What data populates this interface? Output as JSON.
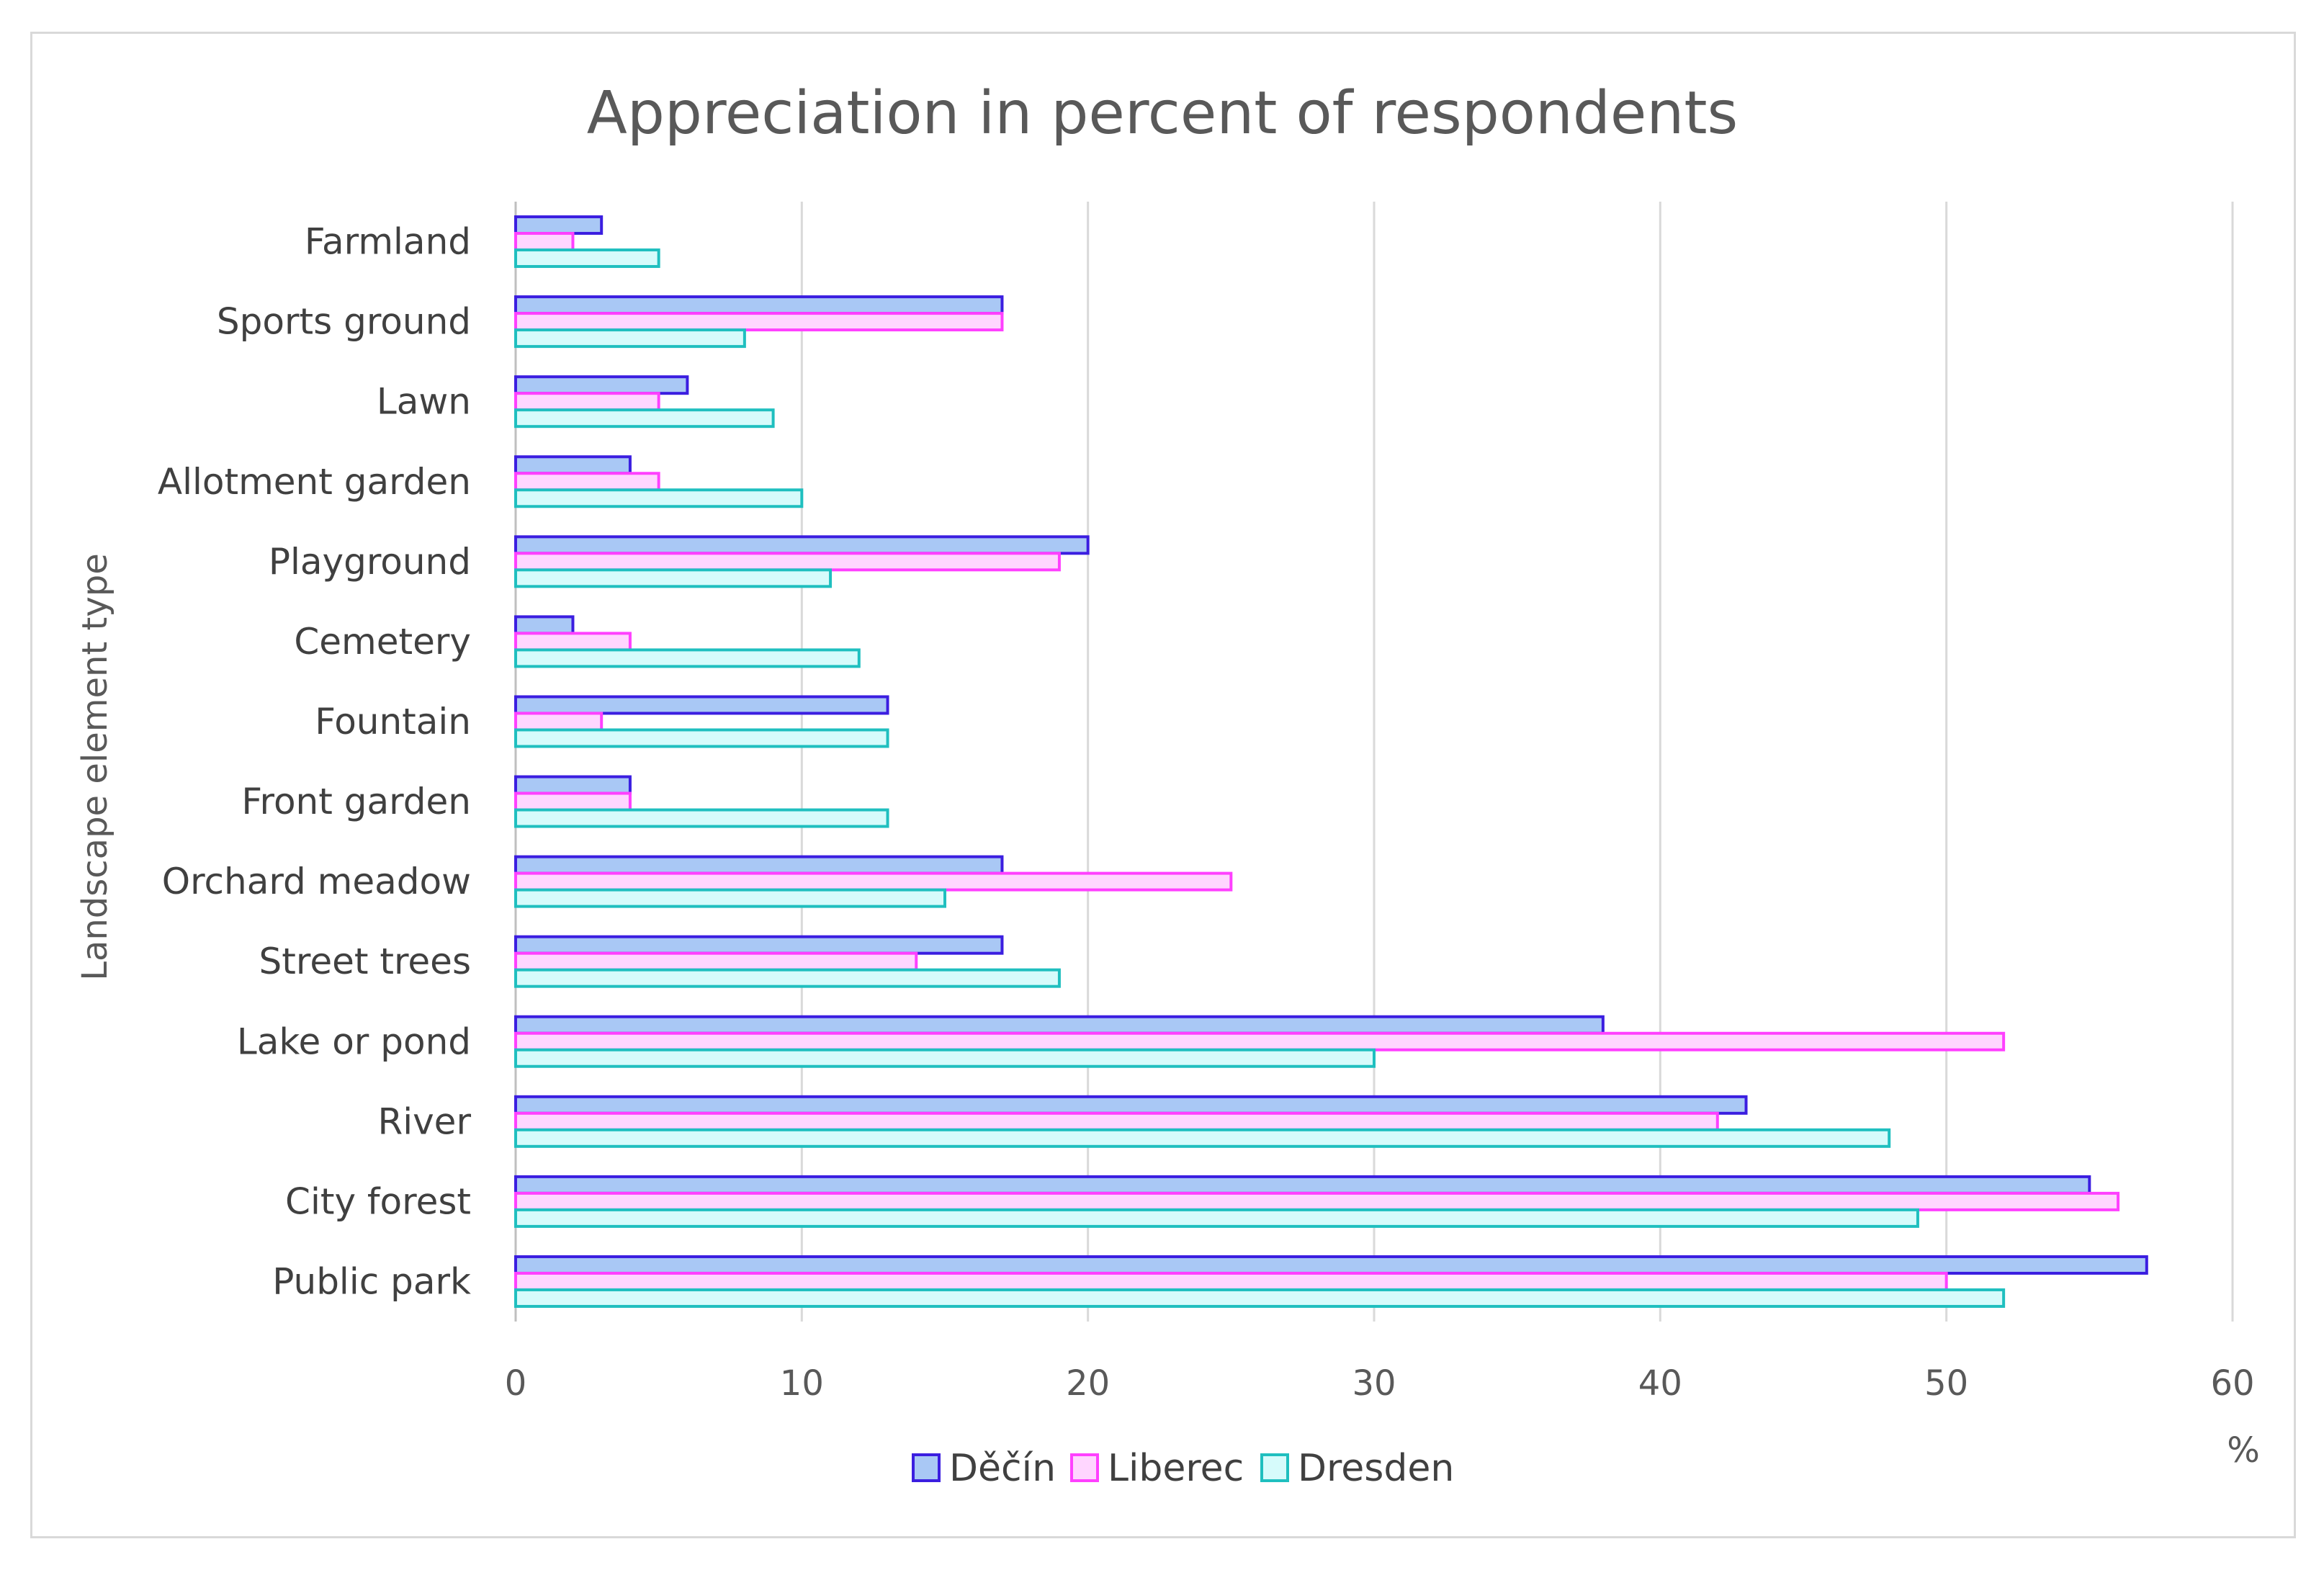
{
  "chart_data": {
    "type": "bar",
    "orientation": "horizontal",
    "title": "Appreciation in percent of respondents",
    "xlabel": "%",
    "ylabel": "Landscape element type",
    "xlim": [
      0,
      60
    ],
    "xticks": [
      "0",
      "10",
      "20",
      "30",
      "40",
      "50",
      "60"
    ],
    "grid": true,
    "legend_position": "bottom",
    "categories": [
      "Farmland",
      "Sports ground",
      "Lawn",
      "Allotment garden",
      "Playground",
      "Cemetery",
      "Fountain",
      "Front garden",
      "Orchard meadow",
      "Street trees",
      "Lake or pond",
      "River",
      "City forest",
      "Public park"
    ],
    "series": [
      {
        "name": "Děčín",
        "fill": "#a9c8f5",
        "stroke": "#3b1ee0",
        "values": [
          3,
          17,
          6,
          4,
          20,
          2,
          13,
          4,
          17,
          17,
          38,
          43,
          55,
          57
        ]
      },
      {
        "name": "Liberec",
        "fill": "#ffd6ff",
        "stroke": "#ff40ff",
        "values": [
          2,
          17,
          5,
          5,
          19,
          4,
          3,
          4,
          25,
          14,
          52,
          42,
          56,
          50
        ]
      },
      {
        "name": "Dresden",
        "fill": "#d6fbfb",
        "stroke": "#1fbfbf",
        "values": [
          5,
          8,
          9,
          10,
          11,
          12,
          13,
          13,
          15,
          19,
          30,
          48,
          49,
          52
        ]
      }
    ]
  }
}
